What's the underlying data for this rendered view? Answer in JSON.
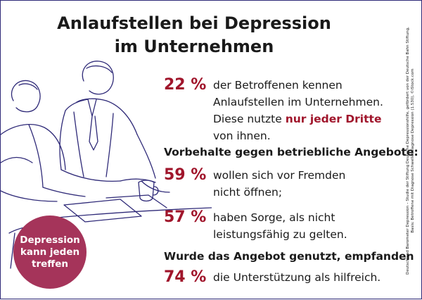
{
  "title": {
    "line1": "Anlaufstellen bei Depression",
    "line2": "im Unternehmen"
  },
  "stats": [
    {
      "percent": "22 %",
      "line1": "der Betroffenen kennen",
      "line2": "Anlaufstellen im Unternehmen.",
      "line3_prefix": "Diese nutzte ",
      "line3_highlight": "nur jeder Dritte",
      "line4": "von ihnen."
    }
  ],
  "section_heading": "Vorbehalte gegen betriebliche Angebote:",
  "reservations": [
    {
      "percent": "59 %",
      "line1": "wollen sich vor Fremden",
      "line2": "nicht öffnen;"
    },
    {
      "percent": "57 %",
      "line1": "haben Sorge, als nicht",
      "line2": "leistungsfähig zu gelten."
    }
  ],
  "usage_heading": "Wurde das Angebot genutzt, empfanden",
  "usage": {
    "percent": "74 %",
    "text": "die Unterstützung als hilfreich."
  },
  "badge": {
    "line1": "Depression",
    "line2": "kann jeden",
    "line3": "treffen"
  },
  "source": {
    "line1": "Deutschland Barometer Depression – Studie der Stiftung Deutsche Depressionshilfe, gefördert von der Deutsche Bahn Stiftung,",
    "line2": "Basis: Betroffene mit Diagnose Schwellendiagnose Depression (1.530), ©iStock.com"
  },
  "colors": {
    "accent": "#a0152b",
    "badge": "#a5345a",
    "line_art": "#2f2a78"
  }
}
